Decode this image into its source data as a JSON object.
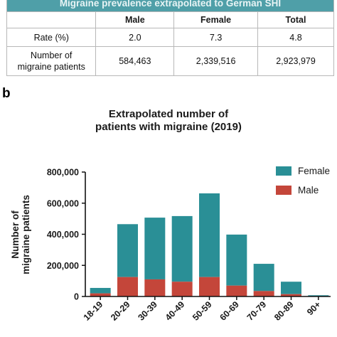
{
  "table": {
    "title": "Migraine prevalence extrapolated to German SHI",
    "headers": [
      "",
      "Male",
      "Female",
      "Total"
    ],
    "rows": [
      {
        "label": "Rate (%)",
        "label_lines": [
          "Rate (%)"
        ],
        "male": "2.0",
        "female": "7.3",
        "total": "4.8"
      },
      {
        "label": "Number of migraine patients",
        "label_lines": [
          "Number of",
          "migraine patients"
        ],
        "male": "584,463",
        "female": "2,339,516",
        "total": "2,923,979"
      }
    ]
  },
  "panel_label": "b",
  "colors": {
    "female": "#2a8f96",
    "male": "#c4463a",
    "banner": "#4f9fa8",
    "axis": "#111111"
  },
  "chart_data": {
    "type": "bar",
    "stacked": true,
    "title_lines": [
      "Extrapolated number of",
      "patients with migraine (2019)"
    ],
    "xlabel": "",
    "ylabel_lines": [
      "Number of",
      "migraine patients"
    ],
    "categories": [
      "18-19",
      "20-29",
      "30-39",
      "40-49",
      "50-59",
      "60-69",
      "70-79",
      "80-89",
      "90+"
    ],
    "series": [
      {
        "name": "Male",
        "values": [
          20000,
          125000,
          110000,
          95000,
          125000,
          70000,
          35000,
          15000,
          2000
        ]
      },
      {
        "name": "Female",
        "values": [
          35000,
          340000,
          397000,
          422000,
          538000,
          328000,
          175000,
          80000,
          6000
        ]
      }
    ],
    "ylim": [
      0,
      800000
    ],
    "yticks": [
      0,
      200000,
      400000,
      600000,
      800000
    ],
    "ytick_labels": [
      "0",
      "200,000",
      "400,000",
      "600,000",
      "800,000"
    ],
    "legend": [
      "Female",
      "Male"
    ],
    "legend_position": "top-right",
    "grid": false
  }
}
